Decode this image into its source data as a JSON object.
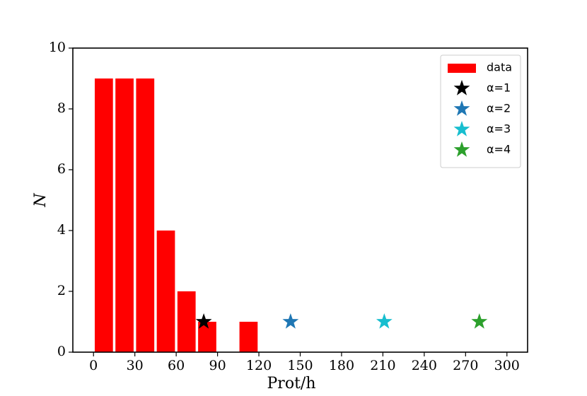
{
  "chart_data": {
    "type": "histogram",
    "x_label": "Prot/h",
    "y_label": "N",
    "bins": [
      0,
      15,
      30,
      45,
      60,
      75,
      90,
      105,
      120
    ],
    "series": [
      {
        "name": "data",
        "color": "#ff0000",
        "values": [
          9,
          9,
          9,
          4,
          2,
          1,
          0,
          1
        ]
      }
    ],
    "markers": [
      {
        "name": "α=1",
        "color": "#000000",
        "x": 80,
        "y": 1
      },
      {
        "name": "α=2",
        "color": "#1f77b4",
        "x": 143,
        "y": 1
      },
      {
        "name": "α=3",
        "color": "#17becf",
        "x": 211,
        "y": 1
      },
      {
        "name": "α=4",
        "color": "#2ca02c",
        "x": 280,
        "y": 1
      }
    ],
    "xlim": [
      -15,
      315
    ],
    "xticks": [
      0,
      30,
      60,
      90,
      120,
      150,
      180,
      210,
      240,
      270,
      300
    ],
    "ylim": [
      0,
      10
    ],
    "yticks": [
      0,
      2,
      4,
      6,
      8,
      10
    ],
    "legend": "upper right"
  }
}
